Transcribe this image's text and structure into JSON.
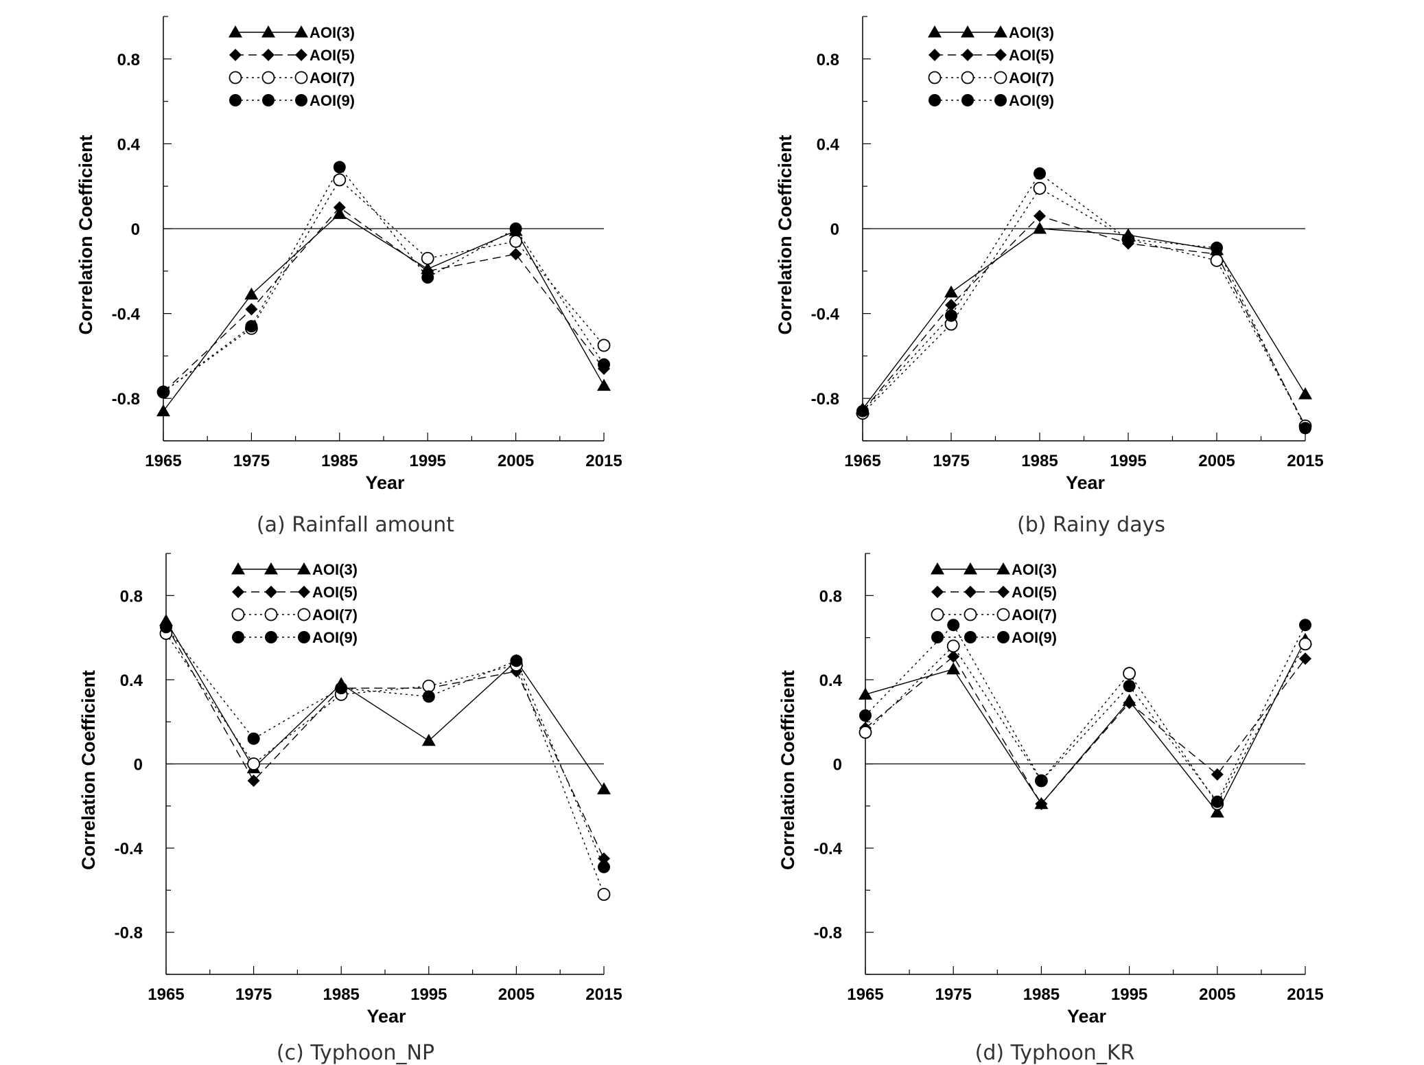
{
  "chart_data": [
    {
      "type": "line",
      "caption": "(a) Rainfall amount",
      "xlabel": "Year",
      "ylabel": "Correlation Coefficient",
      "x": [
        1965,
        1975,
        1985,
        1995,
        2005,
        2015
      ],
      "xlim": [
        1965,
        2015
      ],
      "ylim": [
        -1.0,
        1.0
      ],
      "yticks": [
        -0.8,
        -0.4,
        0,
        0.4,
        0.8
      ],
      "ytick_labels": [
        "-0.8",
        "-0.4",
        "0",
        "0.4",
        "0.8"
      ],
      "xtick_labels": [
        "1965",
        "1975",
        "1985",
        "1995",
        "2005",
        "2015"
      ],
      "legend_position": "top-left",
      "series": [
        {
          "name": "AOI(3)",
          "marker": "triangle",
          "line": "solid",
          "values": [
            -0.86,
            -0.31,
            0.07,
            -0.19,
            -0.01,
            -0.74
          ]
        },
        {
          "name": "AOI(5)",
          "marker": "diamond",
          "line": "dashed",
          "values": [
            -0.77,
            -0.38,
            0.1,
            -0.2,
            -0.12,
            -0.66
          ]
        },
        {
          "name": "AOI(7)",
          "marker": "open-circle",
          "line": "dotted",
          "values": [
            -0.77,
            -0.47,
            0.23,
            -0.14,
            -0.06,
            -0.55
          ]
        },
        {
          "name": "AOI(9)",
          "marker": "filled-circle",
          "line": "dotted",
          "values": [
            -0.77,
            -0.46,
            0.29,
            -0.23,
            0.0,
            -0.64
          ]
        }
      ]
    },
    {
      "type": "line",
      "caption": "(b) Rainy days",
      "xlabel": "Year",
      "ylabel": "Correlation Coefficient",
      "x": [
        1965,
        1975,
        1985,
        1995,
        2005,
        2015
      ],
      "xlim": [
        1965,
        2015
      ],
      "ylim": [
        -1.0,
        1.0
      ],
      "yticks": [
        -0.8,
        -0.4,
        0,
        0.4,
        0.8
      ],
      "ytick_labels": [
        "-0.8",
        "-0.4",
        "0",
        "0.4",
        "0.8"
      ],
      "xtick_labels": [
        "1965",
        "1975",
        "1985",
        "1995",
        "2005",
        "2015"
      ],
      "legend_position": "top-left",
      "series": [
        {
          "name": "AOI(3)",
          "marker": "triangle",
          "line": "solid",
          "values": [
            -0.85,
            -0.3,
            0.0,
            -0.03,
            -0.1,
            -0.78
          ]
        },
        {
          "name": "AOI(5)",
          "marker": "diamond",
          "line": "dashed",
          "values": [
            -0.86,
            -0.36,
            0.06,
            -0.07,
            -0.12,
            -0.93
          ]
        },
        {
          "name": "AOI(7)",
          "marker": "open-circle",
          "line": "dotted",
          "values": [
            -0.87,
            -0.45,
            0.19,
            -0.05,
            -0.15,
            -0.93
          ]
        },
        {
          "name": "AOI(9)",
          "marker": "filled-circle",
          "line": "dotted",
          "values": [
            -0.86,
            -0.41,
            0.26,
            -0.05,
            -0.09,
            -0.94
          ]
        }
      ]
    },
    {
      "type": "line",
      "caption": "(c) Typhoon_NP",
      "xlabel": "Year",
      "ylabel": "Correlation Coefficient",
      "x": [
        1965,
        1975,
        1985,
        1995,
        2005,
        2015
      ],
      "xlim": [
        1965,
        2015
      ],
      "ylim": [
        -1.0,
        1.0
      ],
      "yticks": [
        -0.8,
        -0.4,
        0,
        0.4,
        0.8
      ],
      "ytick_labels": [
        "-0.8",
        "-0.4",
        "0",
        "0.4",
        "0.8"
      ],
      "xtick_labels": [
        "1965",
        "1975",
        "1985",
        "1995",
        "2005",
        "2015"
      ],
      "legend_position": "top-left",
      "series": [
        {
          "name": "AOI(3)",
          "marker": "triangle",
          "line": "solid",
          "values": [
            0.68,
            -0.02,
            0.38,
            0.11,
            0.49,
            -0.12
          ]
        },
        {
          "name": "AOI(5)",
          "marker": "diamond",
          "line": "dashed",
          "values": [
            0.66,
            -0.08,
            0.36,
            0.36,
            0.44,
            -0.45
          ]
        },
        {
          "name": "AOI(7)",
          "marker": "open-circle",
          "line": "dotted",
          "values": [
            0.62,
            0.0,
            0.33,
            0.37,
            0.47,
            -0.62
          ]
        },
        {
          "name": "AOI(9)",
          "marker": "filled-circle",
          "line": "dotted",
          "values": [
            0.65,
            0.12,
            0.36,
            0.32,
            0.49,
            -0.49
          ]
        }
      ]
    },
    {
      "type": "line",
      "caption": "(d) Typhoon_KR",
      "xlabel": "Year",
      "ylabel": "Correlation Coefficient",
      "x": [
        1965,
        1975,
        1985,
        1995,
        2005,
        2015
      ],
      "xlim": [
        1965,
        2015
      ],
      "ylim": [
        -1.0,
        1.0
      ],
      "yticks": [
        -0.8,
        -0.4,
        0,
        0.4,
        0.8
      ],
      "ytick_labels": [
        "-0.8",
        "-0.4",
        "0",
        "0.4",
        "0.8"
      ],
      "xtick_labels": [
        "1965",
        "1975",
        "1985",
        "1995",
        "2005",
        "2015"
      ],
      "legend_position": "top-left",
      "series": [
        {
          "name": "AOI(3)",
          "marker": "triangle",
          "line": "solid",
          "values": [
            0.33,
            0.45,
            -0.19,
            0.3,
            -0.23,
            0.59
          ]
        },
        {
          "name": "AOI(5)",
          "marker": "diamond",
          "line": "dashed",
          "values": [
            0.17,
            0.51,
            -0.19,
            0.29,
            -0.05,
            0.5
          ]
        },
        {
          "name": "AOI(7)",
          "marker": "open-circle",
          "line": "dotted",
          "values": [
            0.15,
            0.56,
            -0.08,
            0.43,
            -0.19,
            0.57
          ]
        },
        {
          "name": "AOI(9)",
          "marker": "filled-circle",
          "line": "dotted",
          "values": [
            0.23,
            0.66,
            -0.08,
            0.37,
            -0.18,
            0.66
          ]
        }
      ]
    }
  ]
}
